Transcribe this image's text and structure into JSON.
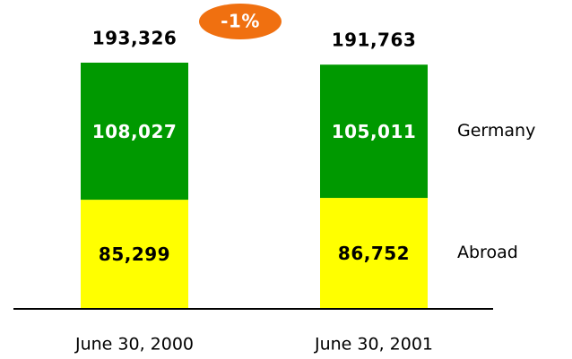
{
  "chart_data": {
    "type": "stacked_bar",
    "categories": [
      "June 30, 2000",
      "June 30, 2001"
    ],
    "series": [
      {
        "name": "Abroad",
        "color": "#ffff00",
        "label_color": "#000000",
        "values": [
          85299,
          86752
        ],
        "value_labels": [
          "85,299",
          "86,752"
        ]
      },
      {
        "name": "Germany",
        "color": "#009900",
        "label_color": "#ffffff",
        "values": [
          108027,
          105011
        ],
        "value_labels": [
          "108,027",
          "105,011"
        ]
      }
    ],
    "totals": [
      193326,
      191763
    ],
    "total_labels": [
      "193,326",
      "191,763"
    ],
    "annotation": "-1%",
    "annotation_color": "#f07010"
  }
}
